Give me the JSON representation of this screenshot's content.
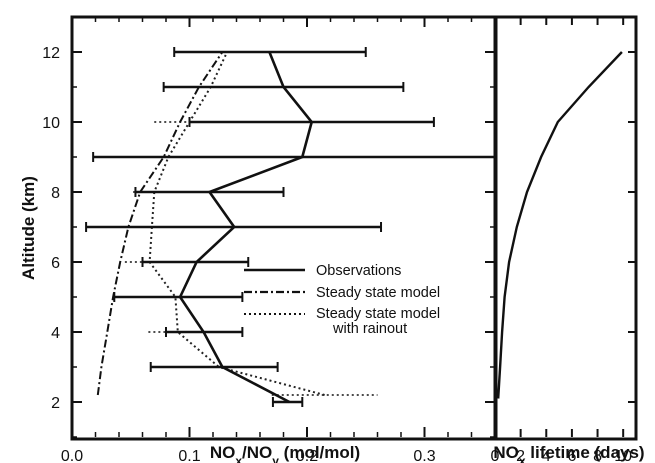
{
  "chart_data": [
    {
      "type": "line",
      "xlabel": "NO_x/NO_y (mol/mol)",
      "ylabel": "Altitude (km)",
      "xlim": [
        0.0,
        0.36
      ],
      "ylim": [
        1.0,
        13.0
      ],
      "x_ticks": [
        0.0,
        0.1,
        0.2,
        0.3
      ],
      "y_ticks": [
        2,
        4,
        6,
        8,
        10,
        12
      ],
      "x_tick_labels": [
        "0.0",
        "0.1",
        "0.2",
        "0.3"
      ],
      "y_tick_labels": [
        "2",
        "4",
        "6",
        "8",
        "10",
        "12"
      ],
      "legend_position": "center-right",
      "series": [
        {
          "name": "Observations",
          "style": "solid",
          "points": [
            {
              "y": 2.0,
              "x": 0.185,
              "xerr": [
                0.171,
                0.196
              ]
            },
            {
              "y": 3.0,
              "x": 0.128,
              "xerr": [
                0.067,
                0.175
              ]
            },
            {
              "y": 4.0,
              "x": 0.112,
              "xerr": [
                0.08,
                0.145
              ]
            },
            {
              "y": 5.0,
              "x": 0.092,
              "xerr": [
                0.036,
                0.145
              ]
            },
            {
              "y": 6.0,
              "x": 0.106,
              "xerr": [
                0.06,
                0.15
              ]
            },
            {
              "y": 7.0,
              "x": 0.138,
              "xerr": [
                0.012,
                0.263
              ]
            },
            {
              "y": 8.0,
              "x": 0.117,
              "xerr": [
                0.054,
                0.18
              ]
            },
            {
              "y": 9.0,
              "x": 0.196,
              "xerr": [
                0.018,
                0.36
              ]
            },
            {
              "y": 10.0,
              "x": 0.204,
              "xerr": [
                0.1,
                0.308
              ]
            },
            {
              "y": 11.0,
              "x": 0.18,
              "xerr": [
                0.078,
                0.282
              ]
            },
            {
              "y": 12.0,
              "x": 0.168,
              "xerr": [
                0.087,
                0.25
              ]
            }
          ]
        },
        {
          "name": "Steady state model",
          "style": "dashdot",
          "points": [
            {
              "y": 2.2,
              "x": 0.022
            },
            {
              "y": 3.0,
              "x": 0.025
            },
            {
              "y": 4.0,
              "x": 0.03
            },
            {
              "y": 5.0,
              "x": 0.035
            },
            {
              "y": 6.0,
              "x": 0.041
            },
            {
              "y": 7.0,
              "x": 0.048
            },
            {
              "y": 8.0,
              "x": 0.058
            },
            {
              "y": 9.0,
              "x": 0.078
            },
            {
              "y": 10.0,
              "x": 0.092
            },
            {
              "y": 11.0,
              "x": 0.108
            },
            {
              "y": 12.0,
              "x": 0.128
            }
          ]
        },
        {
          "name": "Steady state model with rainout",
          "style": "dotted",
          "points": [
            {
              "y": 2.2,
              "x": 0.215,
              "xerr": [
                0.17,
                0.26
              ]
            },
            {
              "y": 3.0,
              "x": 0.125,
              "xerr": [
                0.09,
                0.15
              ]
            },
            {
              "y": 4.0,
              "x": 0.09,
              "xerr": [
                0.065,
                0.13
              ]
            },
            {
              "y": 5.0,
              "x": 0.088,
              "xerr": [
                0.063,
                0.115
              ]
            },
            {
              "y": 6.0,
              "x": 0.066,
              "xerr": [
                0.045,
                0.09
              ]
            },
            {
              "y": 7.0,
              "x": 0.068,
              "xerr": [
                0.045,
                0.09
              ]
            },
            {
              "y": 8.0,
              "x": 0.07,
              "xerr": [
                0.052,
                0.095
              ]
            },
            {
              "y": 9.0,
              "x": 0.082,
              "xerr": [
                0.06,
                0.11
              ]
            },
            {
              "y": 10.0,
              "x": 0.1,
              "xerr": [
                0.07,
                0.13
              ]
            },
            {
              "y": 11.0,
              "x": 0.118,
              "xerr": [
                0.085,
                0.155
              ]
            },
            {
              "y": 12.0,
              "x": 0.132,
              "xerr": [
                0.095,
                0.165
              ]
            }
          ]
        }
      ]
    },
    {
      "type": "line",
      "xlabel": "NO_x lifetime (days)",
      "ylabel": "",
      "xlim": [
        0,
        11
      ],
      "ylim": [
        1.0,
        13.0
      ],
      "x_ticks": [
        0,
        2,
        4,
        6,
        8,
        10
      ],
      "x_tick_labels": [
        "0",
        "2",
        "4",
        "6",
        "8",
        "10"
      ],
      "series": [
        {
          "style": "solid",
          "points": [
            {
              "y": 2.1,
              "x": 0.25
            },
            {
              "y": 3.0,
              "x": 0.4
            },
            {
              "y": 4.0,
              "x": 0.55
            },
            {
              "y": 5.0,
              "x": 0.75
            },
            {
              "y": 6.0,
              "x": 1.1
            },
            {
              "y": 7.0,
              "x": 1.7
            },
            {
              "y": 8.0,
              "x": 2.5
            },
            {
              "y": 9.0,
              "x": 3.6
            },
            {
              "y": 10.0,
              "x": 4.9
            },
            {
              "y": 11.0,
              "x": 7.3
            },
            {
              "y": 12.0,
              "x": 9.9
            }
          ]
        }
      ]
    }
  ]
}
